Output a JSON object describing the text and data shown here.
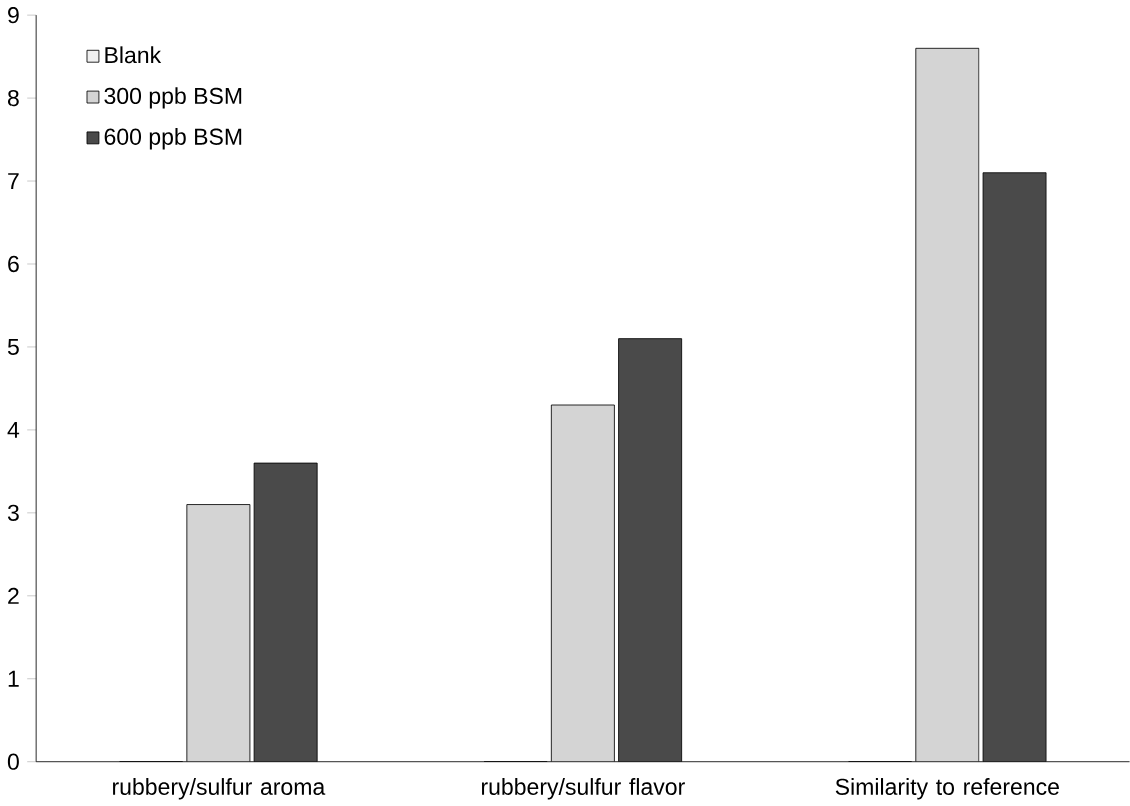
{
  "chart_data": {
    "type": "bar",
    "categories": [
      "rubbery/sulfur aroma",
      "rubbery/sulfur flavor",
      "Similarity to reference"
    ],
    "series": [
      {
        "name": "Blank",
        "color": "#f0f0f0",
        "values": [
          0,
          0,
          0
        ]
      },
      {
        "name": "300 ppb BSM",
        "color": "#d4d4d4",
        "values": [
          3.1,
          4.3,
          8.6
        ]
      },
      {
        "name": "600 ppb BSM",
        "color": "#4a4a4a",
        "values": [
          3.6,
          5.1,
          7.1
        ]
      }
    ],
    "ylim": [
      0,
      9
    ],
    "yticks": [
      0,
      1,
      2,
      3,
      4,
      5,
      6,
      7,
      8,
      9
    ],
    "grid": false,
    "legend": "top left"
  }
}
